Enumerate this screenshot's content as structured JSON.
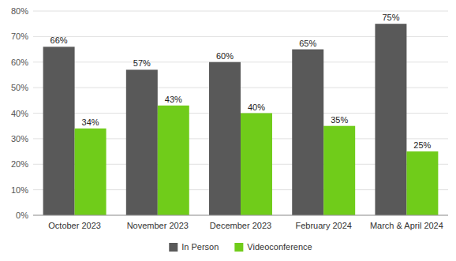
{
  "chart_data": {
    "type": "bar",
    "categories": [
      "October 2023",
      "November 2023",
      "December 2023",
      "February 2024",
      "March & April 2024"
    ],
    "series": [
      {
        "name": "In Person",
        "color": "#595959",
        "values": [
          66,
          57,
          60,
          65,
          75
        ],
        "value_labels": [
          "66%",
          "57%",
          "60%",
          "65%",
          "75%"
        ]
      },
      {
        "name": "Videoconference",
        "color": "#70cc1a",
        "values": [
          34,
          43,
          40,
          35,
          25
        ],
        "value_labels": [
          "34%",
          "43%",
          "40%",
          "35%",
          "25%"
        ]
      }
    ],
    "ylim": [
      0,
      80
    ],
    "yticks": [
      {
        "value": 0,
        "label": "0%"
      },
      {
        "value": 10,
        "label": "10%"
      },
      {
        "value": 20,
        "label": "20%"
      },
      {
        "value": 30,
        "label": "30%"
      },
      {
        "value": 40,
        "label": "40%"
      },
      {
        "value": 50,
        "label": "50%"
      },
      {
        "value": 60,
        "label": "60%"
      },
      {
        "value": 70,
        "label": "70%"
      },
      {
        "value": 80,
        "label": "80%"
      }
    ],
    "grid": true,
    "data_labels": true,
    "legend": "bottom"
  }
}
